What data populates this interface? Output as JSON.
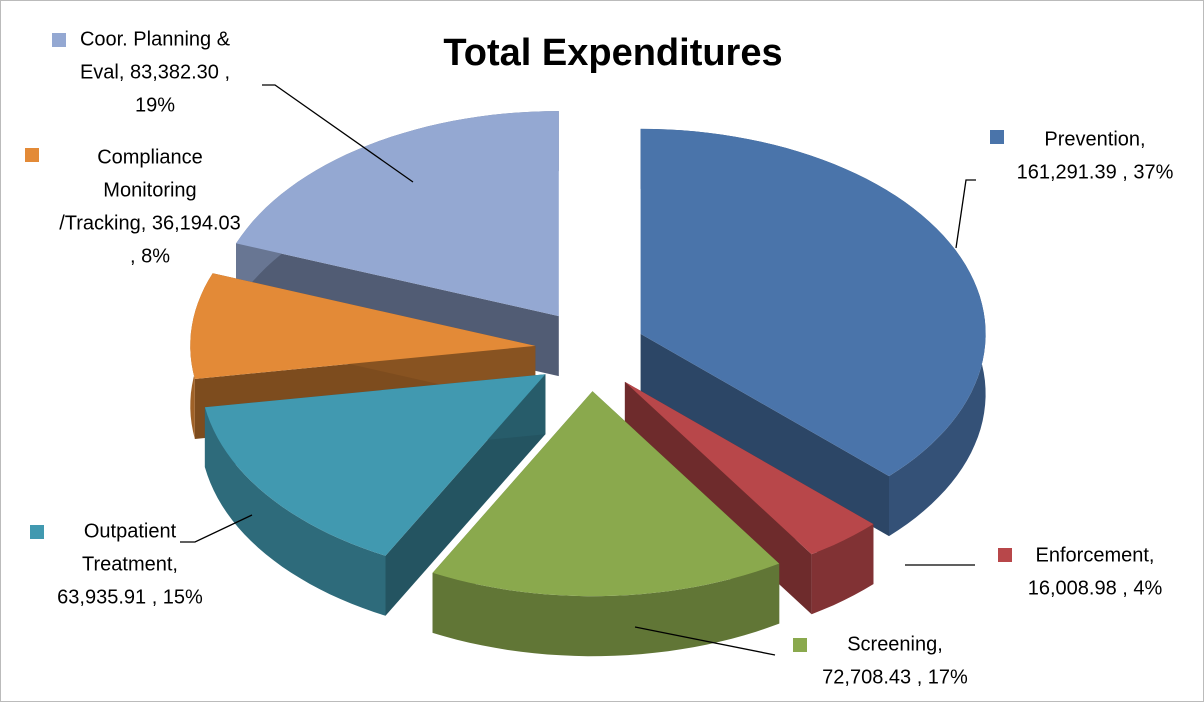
{
  "chart_data": {
    "type": "pie",
    "title": "Total Expenditures",
    "values": [
      161291.39,
      16008.98,
      72708.43,
      63935.91,
      36194.03,
      83382.3
    ],
    "value_labels": [
      [
        "Prevention,",
        "161,291.39 , 37%"
      ],
      [
        "Enforcement,",
        "16,008.98 , 4%"
      ],
      [
        "Screening,",
        "72,708.43 , 17%"
      ],
      [
        "Outpatient",
        "Treatment,",
        "63,935.91 , 15%"
      ],
      [
        "Compliance",
        "Monitoring",
        "/Tracking, 36,194.03",
        ", 8%"
      ],
      [
        "Coor. Planning &",
        "Eval, 83,382.30 ,",
        "19%"
      ]
    ],
    "colors": [
      "#4a74aa",
      "#b8474a",
      "#8aa94d",
      "#4199b0",
      "#e38a37",
      "#94a8d2"
    ]
  }
}
